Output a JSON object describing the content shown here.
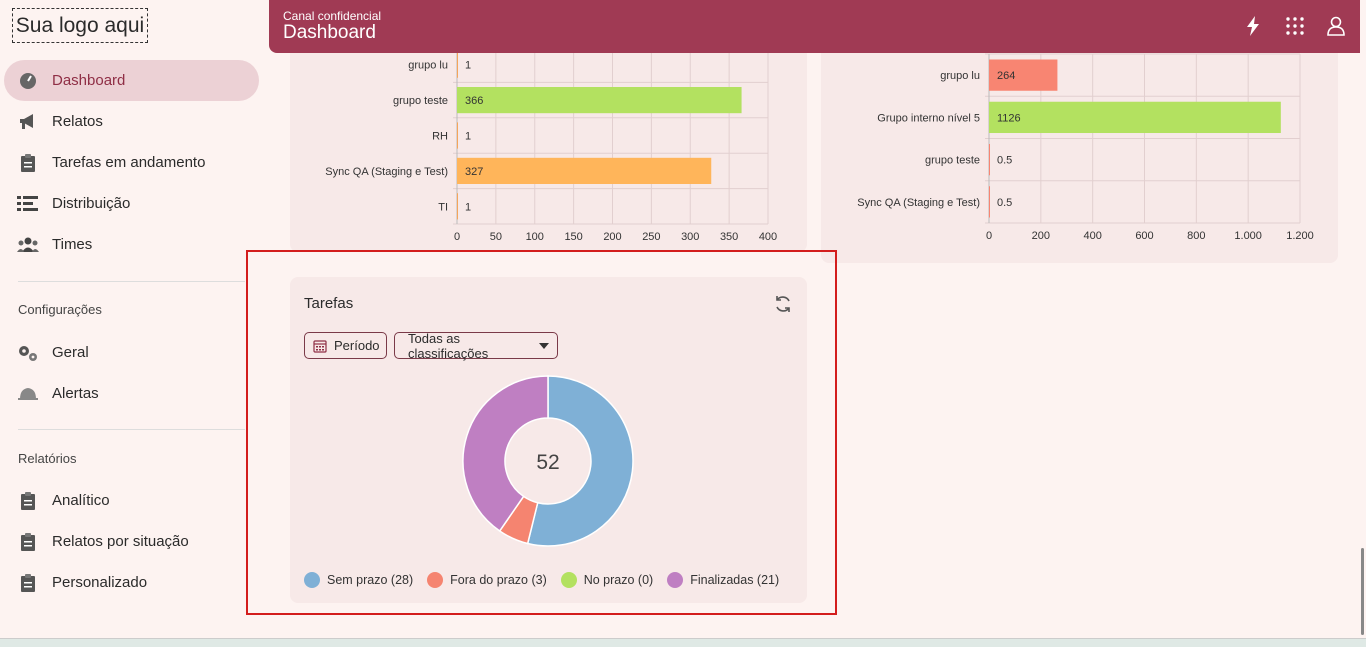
{
  "logo": {
    "text": "Sua logo aqui"
  },
  "header": {
    "subtitle": "Canal confidencial",
    "title": "Dashboard"
  },
  "sidebar": {
    "items": [
      {
        "label": "Dashboard",
        "icon": "gauge-icon"
      },
      {
        "label": "Relatos",
        "icon": "megaphone-icon"
      },
      {
        "label": "Tarefas em andamento",
        "icon": "clipboard-icon"
      },
      {
        "label": "Distribuição",
        "icon": "list-icon"
      },
      {
        "label": "Times",
        "icon": "team-icon"
      }
    ],
    "config_title": "Configurações",
    "config_items": [
      {
        "label": "Geral",
        "icon": "gears-icon"
      },
      {
        "label": "Alertas",
        "icon": "bell-icon"
      }
    ],
    "reports_title": "Relatórios",
    "report_items": [
      {
        "label": "Analítico",
        "icon": "clipboard-icon"
      },
      {
        "label": "Relatos por situação",
        "icon": "clipboard-icon"
      },
      {
        "label": "Personalizado",
        "icon": "clipboard-icon"
      }
    ]
  },
  "tarefas": {
    "title": "Tarefas",
    "period_button": "Período",
    "classification_select": "Todas as classificações",
    "total": "52",
    "legend": [
      {
        "label": "Sem prazo (28)",
        "color": "#7fb0d6"
      },
      {
        "label": "Fora do prazo (3)",
        "color": "#f58470"
      },
      {
        "label": "No prazo (0)",
        "color": "#b3e160"
      },
      {
        "label": "Finalizadas (21)",
        "color": "#bf7fc2"
      }
    ]
  },
  "chart_data": [
    {
      "type": "bar",
      "orientation": "horizontal",
      "categories": [
        "grupo lu",
        "grupo teste",
        "RH",
        "Sync QA (Staging e Test)",
        "TI"
      ],
      "values": [
        1,
        366,
        1,
        327,
        1
      ],
      "value_labels": [
        "1",
        "366",
        "1",
        "327",
        "1"
      ],
      "colors": [
        "#f5a55a",
        "#b3e160",
        "#f5a55a",
        "#ffb55a",
        "#f5a55a"
      ],
      "xlim": [
        0,
        400
      ],
      "ticks": [
        "0",
        "50",
        "100",
        "150",
        "200",
        "250",
        "300",
        "350",
        "400"
      ],
      "grid": true
    },
    {
      "type": "bar",
      "orientation": "horizontal",
      "categories": [
        "grupo lu",
        "Grupo interno nível 5",
        "grupo teste",
        "Sync QA (Staging e Test)"
      ],
      "values": [
        264,
        1126,
        0.5,
        0.5
      ],
      "value_labels": [
        "264",
        "1126",
        "0.5",
        "0.5"
      ],
      "colors": [
        "#f88572",
        "#b3e160",
        "#f88572",
        "#f88572"
      ],
      "xlim": [
        0,
        1200
      ],
      "ticks": [
        "0",
        "200",
        "400",
        "600",
        "800",
        "1.000",
        "1.200"
      ],
      "grid": true
    },
    {
      "type": "pie",
      "donut": true,
      "categories": [
        "Sem prazo",
        "Fora do prazo",
        "No prazo",
        "Finalizadas"
      ],
      "values": [
        28,
        3,
        0,
        21
      ],
      "colors": [
        "#7fb0d6",
        "#f58470",
        "#b3e160",
        "#bf7fc2"
      ],
      "center_label": "52"
    }
  ]
}
